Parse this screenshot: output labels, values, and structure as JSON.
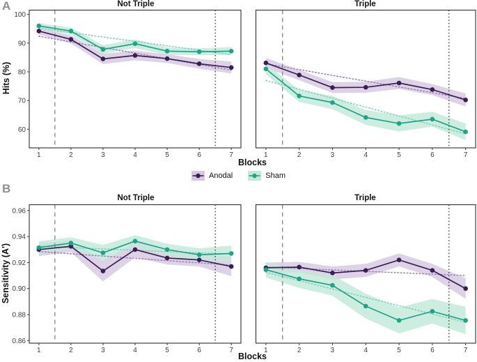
{
  "figure": {
    "panel_a_letter": "A",
    "panel_b_letter": "B",
    "facet_titles": {
      "left": "Not Triple",
      "right": "Triple"
    },
    "y_axis_a": "Hits (%)",
    "y_axis_b": "Sensitivity (A')",
    "x_axis": "Blocks"
  },
  "legend": {
    "items": [
      {
        "label": "Anodal",
        "color": "#3a1d52",
        "fill": "#d6c7e0"
      },
      {
        "label": "Sham",
        "color": "#1fa287",
        "fill": "#c2e8da"
      }
    ]
  },
  "chart_data": [
    {
      "type": "line",
      "id": "hits-not-triple",
      "facet": "Not Triple",
      "ylabel": "Hits (%)",
      "xlabel": "Blocks",
      "x": [
        1,
        2,
        3,
        4,
        5,
        6,
        7
      ],
      "xlim": [
        0.7,
        7.3
      ],
      "ylim": [
        53.5,
        101.5
      ],
      "yticks": [
        60,
        70,
        80,
        90,
        100
      ],
      "ytick_labels": [
        "60",
        "70",
        "80",
        "90",
        "100"
      ],
      "show_y_ticks": true,
      "vlines": [
        {
          "x": 1.5,
          "style": "dashed"
        },
        {
          "x": 6.5,
          "style": "dotted"
        }
      ],
      "series": [
        {
          "name": "Anodal",
          "color": "#3a1d52",
          "fill": "#d6c7e0",
          "trend_color": "#9b82b8",
          "values": [
            94.2,
            91.3,
            84.5,
            85.7,
            84.6,
            82.8,
            81.5
          ],
          "ci": [
            1.2,
            1.4,
            1.8,
            1.7,
            1.5,
            1.7,
            2.1
          ],
          "trend": [
            92.4,
            80.6
          ]
        },
        {
          "name": "Sham",
          "color": "#1fa287",
          "fill": "#c2e8da",
          "trend_color": "#7ed1ba",
          "values": [
            96.0,
            94.2,
            87.8,
            89.8,
            87.2,
            87.0,
            87.2
          ],
          "ci": [
            1.0,
            1.2,
            1.5,
            1.5,
            1.3,
            1.2,
            1.4
          ],
          "trend": [
            95.2,
            86.0
          ]
        }
      ]
    },
    {
      "type": "line",
      "id": "hits-triple",
      "facet": "Triple",
      "ylabel": "Hits (%)",
      "xlabel": "Blocks",
      "x": [
        1,
        2,
        3,
        4,
        5,
        6,
        7
      ],
      "xlim": [
        0.7,
        7.3
      ],
      "ylim": [
        53.5,
        101.5
      ],
      "yticks": [
        60,
        70,
        80,
        90,
        100
      ],
      "ytick_labels": [
        "60",
        "70",
        "80",
        "90",
        "100"
      ],
      "show_y_ticks": false,
      "vlines": [
        {
          "x": 1.5,
          "style": "dashed"
        },
        {
          "x": 6.5,
          "style": "dotted"
        }
      ],
      "series": [
        {
          "name": "Anodal",
          "color": "#3a1d52",
          "fill": "#d6c7e0",
          "trend_color": "#9b82b8",
          "values": [
            83.1,
            78.9,
            74.5,
            74.6,
            76.1,
            73.8,
            70.2
          ],
          "ci": [
            1.7,
            1.8,
            1.9,
            1.9,
            2.1,
            1.9,
            2.3
          ],
          "trend": [
            82.8,
            70.7
          ]
        },
        {
          "name": "Sham",
          "color": "#1fa287",
          "fill": "#c2e8da",
          "trend_color": "#7ed1ba",
          "values": [
            81.0,
            71.6,
            69.3,
            64.1,
            62.0,
            63.5,
            59.1
          ],
          "ci": [
            1.8,
            2.1,
            2.3,
            2.6,
            2.8,
            2.6,
            2.9
          ],
          "trend": [
            77.0,
            58.4
          ]
        }
      ]
    },
    {
      "type": "line",
      "id": "sensitivity-not-triple",
      "facet": "Not Triple",
      "ylabel": "Sensitivity (A')",
      "xlabel": "Blocks",
      "x": [
        1,
        2,
        3,
        4,
        5,
        6,
        7
      ],
      "xlim": [
        0.7,
        7.3
      ],
      "ylim": [
        0.858,
        0.9645
      ],
      "yticks": [
        0.86,
        0.88,
        0.9,
        0.92,
        0.94,
        0.96
      ],
      "ytick_labels": [
        "0.86",
        "0.88",
        "0.90",
        "0.92",
        "0.94",
        "0.96"
      ],
      "show_y_ticks": true,
      "vlines": [
        {
          "x": 1.5,
          "style": "dashed"
        },
        {
          "x": 6.5,
          "style": "dotted"
        }
      ],
      "series": [
        {
          "name": "Anodal",
          "color": "#3a1d52",
          "fill": "#d6c7e0",
          "trend_color": "#9b82b8",
          "values": [
            0.93,
            0.9325,
            0.9135,
            0.93,
            0.9235,
            0.922,
            0.917
          ],
          "ci": [
            0.005,
            0.0045,
            0.008,
            0.006,
            0.005,
            0.005,
            0.0075
          ],
          "trend": [
            0.9285,
            0.918
          ]
        },
        {
          "name": "Sham",
          "color": "#1fa287",
          "fill": "#c2e8da",
          "trend_color": "#7ed1ba",
          "values": [
            0.9315,
            0.935,
            0.9275,
            0.9365,
            0.93,
            0.926,
            0.927
          ],
          "ci": [
            0.005,
            0.0045,
            0.006,
            0.0045,
            0.0045,
            0.005,
            0.006
          ],
          "trend": [
            0.9325,
            0.9265
          ]
        }
      ]
    },
    {
      "type": "line",
      "id": "sensitivity-triple",
      "facet": "Triple",
      "ylabel": "Sensitivity (A')",
      "xlabel": "Blocks",
      "x": [
        1,
        2,
        3,
        4,
        5,
        6,
        7
      ],
      "xlim": [
        0.7,
        7.3
      ],
      "ylim": [
        0.858,
        0.9645
      ],
      "yticks": [
        0.86,
        0.88,
        0.9,
        0.92,
        0.94,
        0.96
      ],
      "ytick_labels": [
        "0.86",
        "0.88",
        "0.90",
        "0.92",
        "0.94",
        "0.96"
      ],
      "show_y_ticks": false,
      "vlines": [
        {
          "x": 1.5,
          "style": "dashed"
        },
        {
          "x": 6.5,
          "style": "dotted"
        }
      ],
      "series": [
        {
          "name": "Anodal",
          "color": "#3a1d52",
          "fill": "#d6c7e0",
          "trend_color": "#9b82b8",
          "values": [
            0.916,
            0.9165,
            0.912,
            0.914,
            0.922,
            0.914,
            0.9
          ],
          "ci": [
            0.004,
            0.004,
            0.005,
            0.005,
            0.005,
            0.005,
            0.008
          ],
          "trend": [
            0.9165,
            0.91
          ]
        },
        {
          "name": "Sham",
          "color": "#1fa287",
          "fill": "#c2e8da",
          "trend_color": "#7ed1ba",
          "values": [
            0.9145,
            0.9075,
            0.9025,
            0.8865,
            0.8755,
            0.8825,
            0.8755
          ],
          "ci": [
            0.006,
            0.007,
            0.008,
            0.0095,
            0.01,
            0.0095,
            0.0105
          ],
          "trend": [
            0.9125,
            0.874
          ]
        }
      ]
    }
  ]
}
